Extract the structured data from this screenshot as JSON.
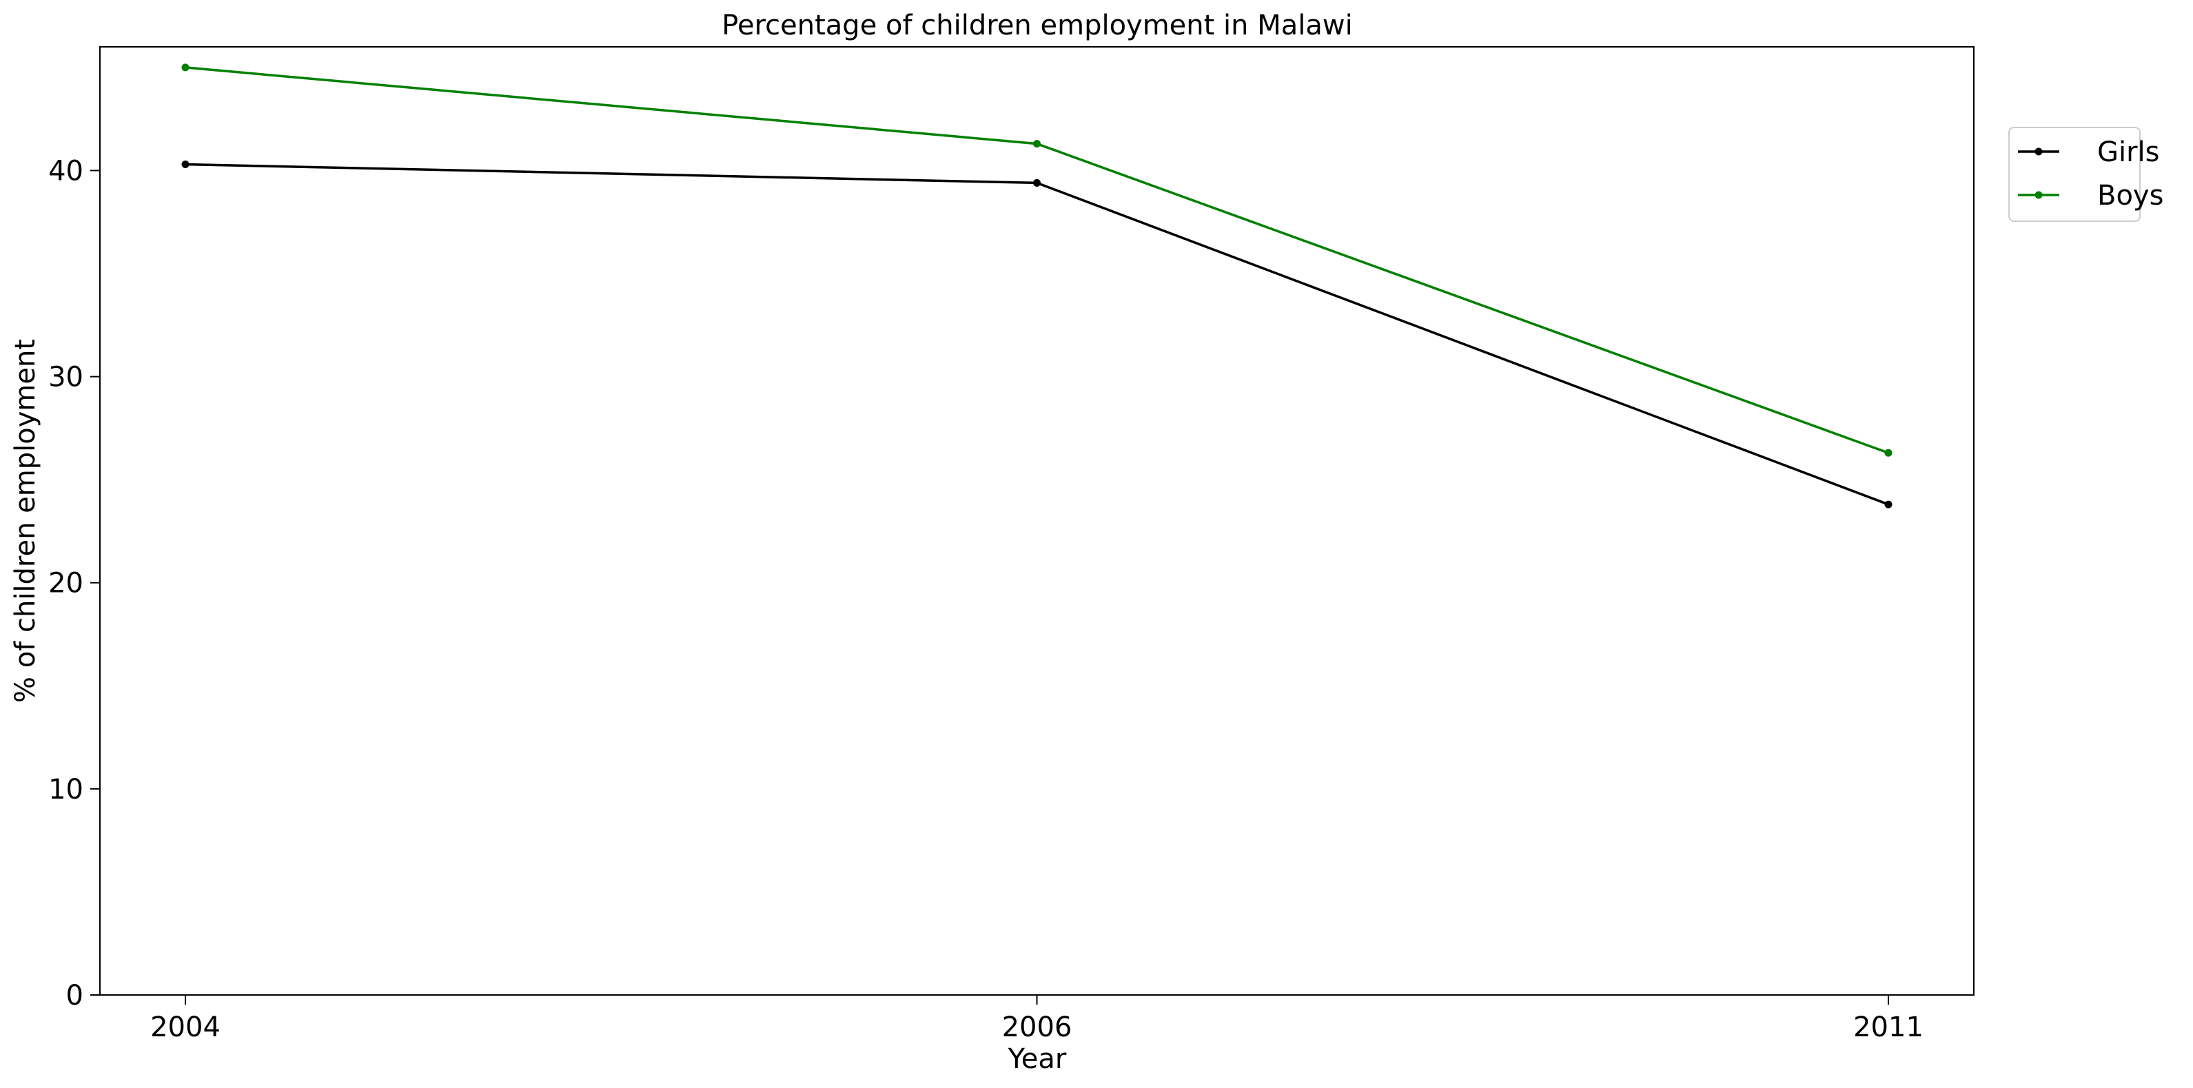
{
  "chart_data": {
    "type": "line",
    "title": "Percentage of children employment in Malawi",
    "xlabel": "Year",
    "ylabel": "% of children employment",
    "categories": [
      "2004",
      "2006",
      "2011"
    ],
    "ylim": [
      0,
      46
    ],
    "yticks": [
      0,
      10,
      20,
      30,
      40
    ],
    "grid": false,
    "legend_position": "upper-right-outside",
    "series": [
      {
        "name": "Girls",
        "color": "#000000",
        "values": [
          40.3,
          39.4,
          23.8
        ]
      },
      {
        "name": "Boys",
        "color": "#008000",
        "values": [
          45.0,
          41.3,
          26.3
        ]
      }
    ]
  }
}
